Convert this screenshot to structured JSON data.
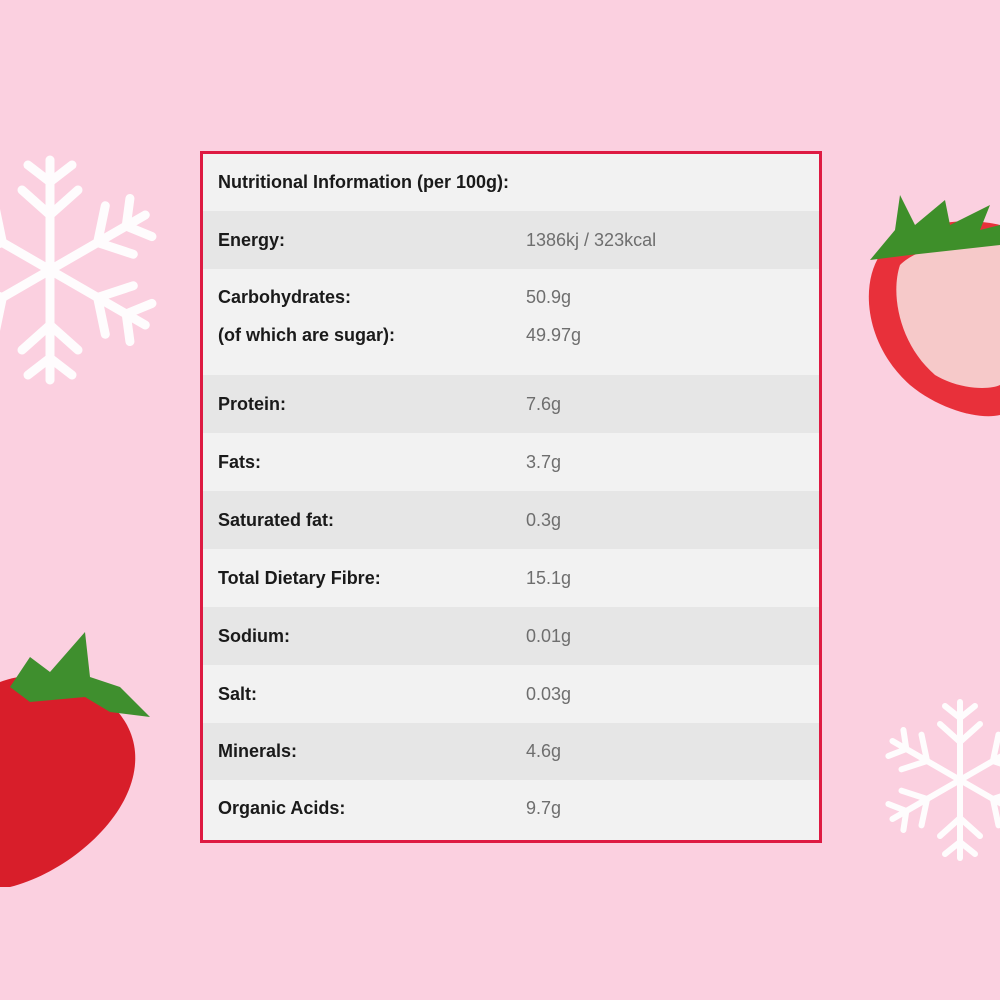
{
  "title": "Nutritional Information (per 100g):",
  "rows": [
    {
      "label": "Energy:",
      "value": "1386kj / 323kcal"
    },
    {
      "label": "Carbohydrates:",
      "value": "50.9g",
      "sub_label": "(of which are sugar):",
      "sub_value": "49.97g"
    },
    {
      "label": "Protein:",
      "value": "7.6g"
    },
    {
      "label": "Fats:",
      "value": "3.7g"
    },
    {
      "label": "Saturated fat:",
      "value": "0.3g"
    },
    {
      "label": "Total Dietary Fibre:",
      "value": "15.1g"
    },
    {
      "label": "Sodium:",
      "value": "0.01g"
    },
    {
      "label": "Salt:",
      "value": "0.03g"
    },
    {
      "label": "Minerals:",
      "value": "4.6g"
    },
    {
      "label": "Organic Acids:",
      "value": "9.7g"
    }
  ],
  "colors": {
    "background": "#fbd0e0",
    "border": "#de1a42"
  }
}
